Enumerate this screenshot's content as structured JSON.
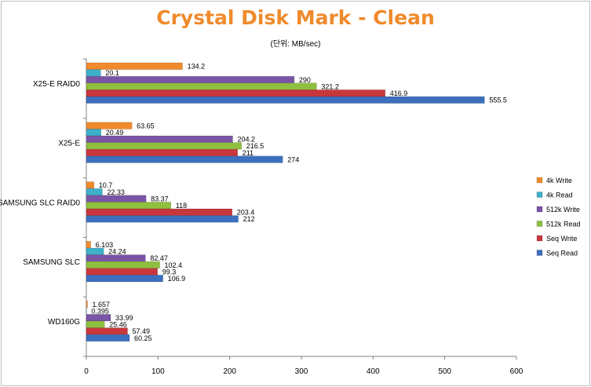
{
  "chart_data": {
    "type": "bar",
    "orientation": "horizontal",
    "title": "Crystal Disk Mark - Clean",
    "subtitle": "(단위: MB/sec)",
    "categories": [
      "X25-E RAID0",
      "X25-E",
      "SAMSUNG SLC RAID0",
      "SAMSUNG SLC",
      "WD160G"
    ],
    "series": [
      {
        "name": "4k Write",
        "color": "#f08a2c",
        "values": [
          134.2,
          63.65,
          10.7,
          6.103,
          1.657
        ],
        "labels": [
          "134.2",
          "63.65",
          "10.7",
          "6.103",
          "1.657"
        ]
      },
      {
        "name": "4k Read",
        "color": "#3fb0c9",
        "values": [
          20.1,
          20.49,
          22.33,
          24.24,
          0.395
        ],
        "labels": [
          "20.1",
          "20.49",
          "22.33",
          "24.24",
          "0.395"
        ]
      },
      {
        "name": "512k Write",
        "color": "#7a55a6",
        "values": [
          290,
          204.2,
          83.37,
          82.47,
          33.99
        ],
        "labels": [
          "290",
          "204.2",
          "83.37",
          "82.47",
          "33.99"
        ]
      },
      {
        "name": "512k Read",
        "color": "#8fbf3f",
        "values": [
          321.2,
          216.5,
          118,
          102.4,
          25.46
        ],
        "labels": [
          "321.2",
          "216.5",
          "118",
          "102.4",
          "25.46"
        ]
      },
      {
        "name": "Seq Write",
        "color": "#c9373d",
        "values": [
          416.9,
          211,
          203.4,
          99.3,
          57.49
        ],
        "labels": [
          "416.9",
          "211",
          "203.4",
          "99.3",
          "57.49"
        ]
      },
      {
        "name": "Seq Read",
        "color": "#3d6fbf",
        "values": [
          555.5,
          274,
          212,
          106.9,
          60.25
        ],
        "labels": [
          "555.5",
          "274",
          "212",
          "106.9",
          "60.25"
        ]
      }
    ],
    "xlim": [
      0,
      600
    ],
    "xticks": [
      "0",
      "100",
      "200",
      "300",
      "400",
      "500",
      "600"
    ],
    "legend_position": "right",
    "grid": false
  }
}
